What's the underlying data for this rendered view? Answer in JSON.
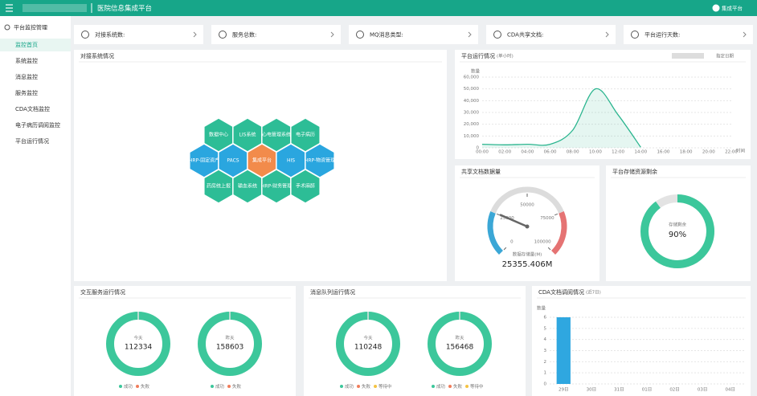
{
  "header": {
    "title": "医院信息集成平台",
    "user": "集成平台"
  },
  "sidebar": {
    "title": "平台监控管理",
    "items": [
      "监控首页",
      "系统监控",
      "消息监控",
      "服务监控",
      "CDA文档监控",
      "电子病历调阅监控",
      "平台运行情况"
    ]
  },
  "stats": [
    "对接系统数:",
    "服务总数:",
    "MQ消息类型:",
    "CDA共享文档:",
    "平台运行天数:"
  ],
  "systems": {
    "title": "对接系统情况",
    "nodes": [
      {
        "label": "数据中心",
        "color": "#2dbd96"
      },
      {
        "label": "LIS系统",
        "color": "#2dbd96"
      },
      {
        "label": "心电管理系统",
        "color": "#2dbd96"
      },
      {
        "label": "电子病历",
        "color": "#2dbd96"
      },
      {
        "label": "HRP-固定资产",
        "color": "#2aa6df"
      },
      {
        "label": "PACS",
        "color": "#2aa6df"
      },
      {
        "label": "集成平台",
        "color": "#f28b4b"
      },
      {
        "label": "HIS",
        "color": "#2aa6df"
      },
      {
        "label": "HRP-物资管理",
        "color": "#2aa6df"
      },
      {
        "label": "药房统上报",
        "color": "#2dbd96"
      },
      {
        "label": "输血系统",
        "color": "#2dbd96"
      },
      {
        "label": "HRP-财务管理",
        "color": "#2dbd96"
      },
      {
        "label": "手术麻醉",
        "color": "#2dbd96"
      }
    ]
  },
  "chart_data": [
    {
      "type": "line",
      "title": "平台运行情况",
      "subtitle": "(单小时)",
      "filter": "指定日期",
      "y_label": "数量",
      "x_label": "时间",
      "color": "#2bb58f",
      "categories": [
        "00:00",
        "02:00",
        "04:00",
        "06:00",
        "08:00",
        "10:00",
        "12:00",
        "14:00",
        "16:00",
        "18:00",
        "20:00",
        "22:00"
      ],
      "values": [
        3000,
        2500,
        3000,
        3000,
        15000,
        50000,
        28000,
        500,
        null,
        null,
        null,
        null
      ],
      "ylim": [
        0,
        60000
      ],
      "yticks": [
        0,
        {
          "value": 10000,
          "label": "10,000"
        },
        {
          "value": 20000,
          "label": "20,000"
        },
        {
          "value": 30000,
          "label": "30,000"
        },
        {
          "value": 40000,
          "label": "40,000"
        },
        {
          "value": 50000,
          "label": "50,000"
        },
        {
          "value": 60000,
          "label": "60,000"
        }
      ],
      "grid": true
    },
    {
      "type": "gauge",
      "title": "共享文档数据量",
      "label": "数据存储量(M)",
      "ylim": [
        0,
        100000
      ],
      "yticks": [
        0,
        25000,
        50000,
        75000,
        100000
      ],
      "values": [
        25355.406
      ],
      "value_labels": [
        "25355.406M"
      ]
    },
    {
      "type": "ring",
      "title": "平台存储资源剩余",
      "categories": [
        "存储剩余"
      ],
      "values": [
        90
      ],
      "value_labels": [
        "90%"
      ],
      "ylim": [
        0,
        100
      ],
      "color": "#3cc79b"
    },
    {
      "type": "totals",
      "title": "交互服务运行情况",
      "categories": [
        "今天",
        "昨天"
      ],
      "values": [
        112334,
        158603
      ],
      "color": "#3cc79b",
      "legend": [
        {
          "name": "成功",
          "color": "#3cc79b"
        },
        {
          "name": "失败",
          "color": "#f07c5a"
        }
      ]
    },
    {
      "type": "totals",
      "title": "消息队列运行情况",
      "categories": [
        "今天",
        "昨天"
      ],
      "values": [
        110248,
        156468
      ],
      "color": "#3cc79b",
      "legend": [
        {
          "name": "成功",
          "color": "#3cc79b"
        },
        {
          "name": "失败",
          "color": "#f07c5a"
        },
        {
          "name": "等待中",
          "color": "#f5c342"
        }
      ]
    },
    {
      "type": "bar",
      "title": "CDA文档调阅情况",
      "subtitle": "(近7日)",
      "y_label": "数量",
      "color": "#2fa7e0",
      "categories": [
        "29日",
        "30日",
        "31日",
        "01日",
        "02日",
        "03日",
        "04日"
      ],
      "values": [
        6,
        0,
        0,
        0,
        0,
        0,
        0
      ],
      "ylim": [
        0,
        6
      ],
      "yticks": [
        0,
        1,
        2,
        3,
        4,
        5,
        6
      ],
      "grid": true
    }
  ]
}
